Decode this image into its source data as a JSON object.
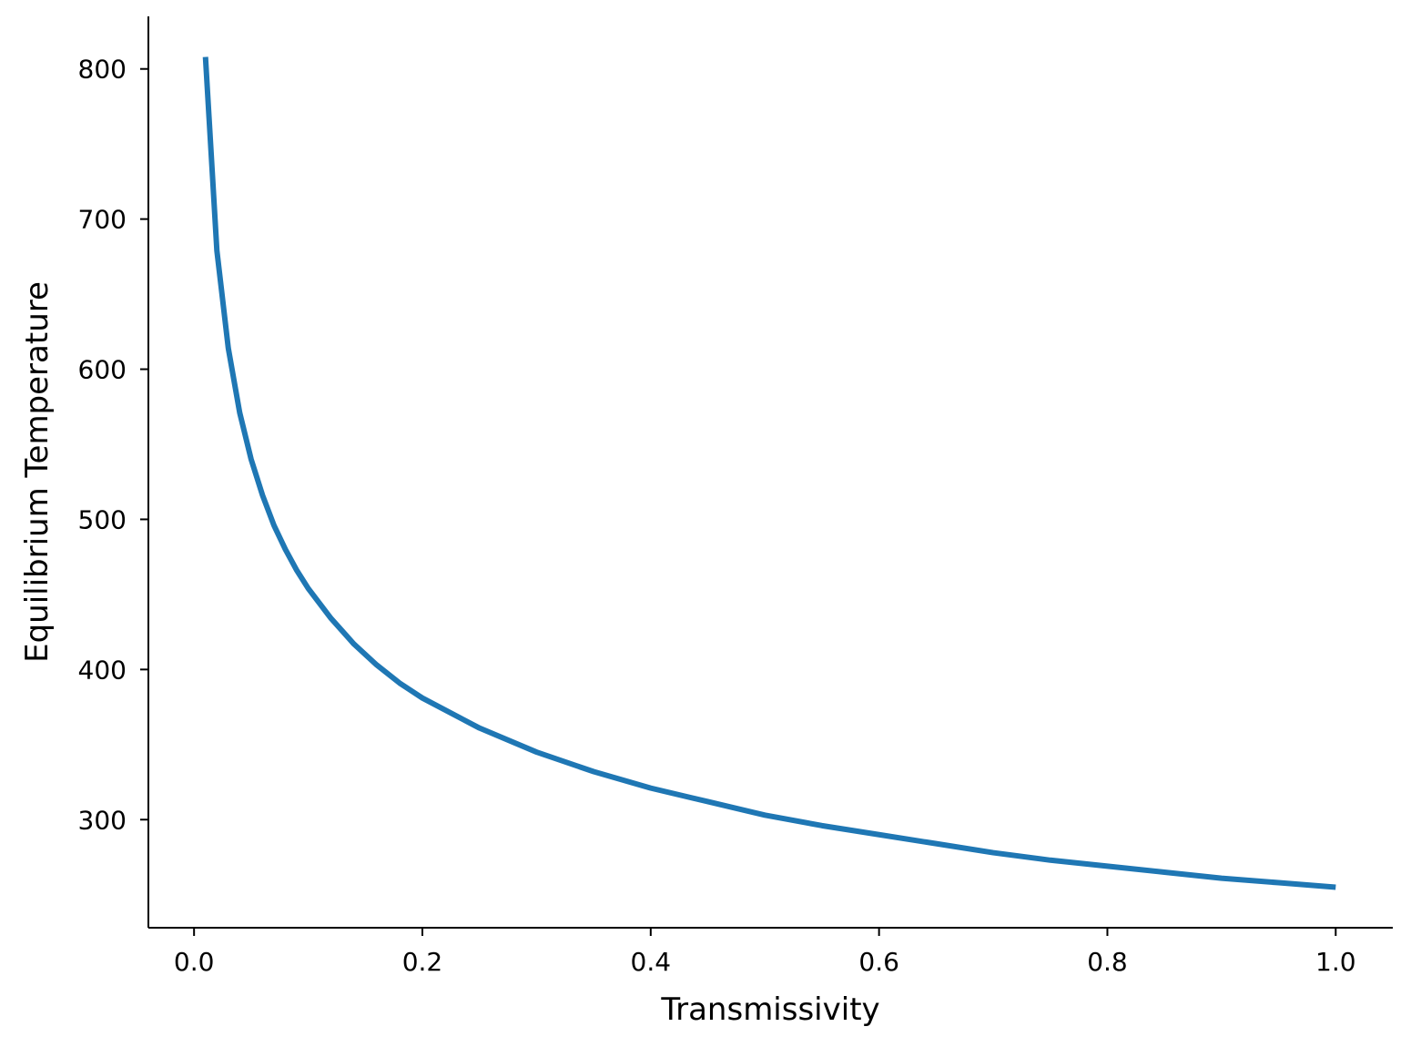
{
  "chart_data": {
    "type": "line",
    "title": "",
    "xlabel": "Transmissivity",
    "ylabel": "Equilibrium Temperature",
    "xlim": [
      -0.04,
      1.05
    ],
    "ylim": [
      228,
      835
    ],
    "xticks": [
      0.0,
      0.2,
      0.4,
      0.6,
      0.8,
      1.0
    ],
    "xtick_labels": [
      "0.0",
      "0.2",
      "0.4",
      "0.6",
      "0.8",
      "1.0"
    ],
    "yticks": [
      300,
      400,
      500,
      600,
      700,
      800
    ],
    "ytick_labels": [
      "300",
      "400",
      "500",
      "600",
      "700",
      "800"
    ],
    "grid": false,
    "series": [
      {
        "color": "#1f77b4",
        "x": [
          0.01,
          0.02,
          0.03,
          0.04,
          0.05,
          0.06,
          0.07,
          0.08,
          0.09,
          0.1,
          0.12,
          0.14,
          0.16,
          0.18,
          0.2,
          0.25,
          0.3,
          0.35,
          0.4,
          0.45,
          0.5,
          0.55,
          0.6,
          0.65,
          0.7,
          0.75,
          0.8,
          0.85,
          0.9,
          0.95,
          1.0
        ],
        "y": [
          808,
          679,
          614,
          571,
          540,
          516,
          496,
          480,
          466,
          454,
          434,
          417,
          403,
          391,
          381,
          361,
          345,
          332,
          321,
          312,
          303,
          296,
          290,
          284,
          278,
          273,
          269,
          265,
          261,
          258,
          255
        ]
      }
    ]
  }
}
